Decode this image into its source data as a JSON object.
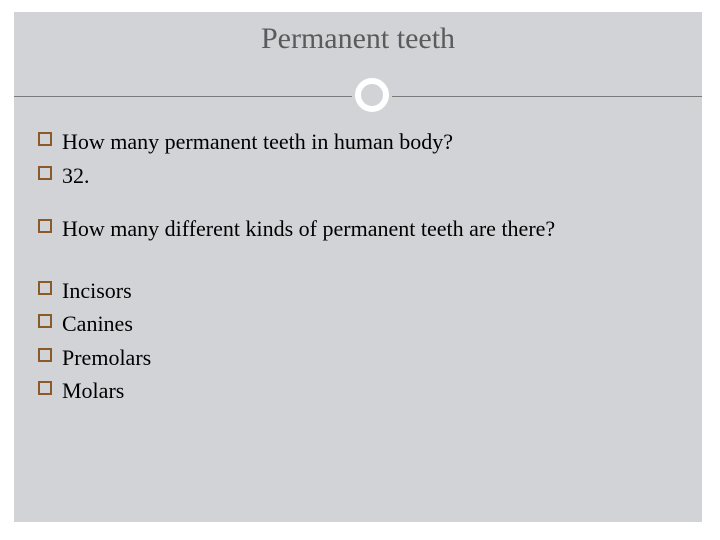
{
  "slide": {
    "title": "Permanent teeth",
    "title_color": "#5b5b5b",
    "title_fontsize": 30,
    "background_outer": "#ffffff",
    "background_inner": "#d1d3d7",
    "rule_color": "#7a7a7a",
    "circle_border_color": "#ffffff",
    "bullet_border_color": "#8a5a2a",
    "body_fontsize": 22,
    "body_color": "#000000",
    "items": [
      {
        "text": "How many permanent teeth in human body?"
      },
      {
        "text": " 32."
      },
      {
        "text": "How many different kinds of permanent teeth are there?",
        "gap_before": "sm"
      },
      {
        "text": "Incisors",
        "gap_before": "md"
      },
      {
        "text": "Canines"
      },
      {
        "text": "Premolars"
      },
      {
        "text": "Molars"
      }
    ]
  }
}
